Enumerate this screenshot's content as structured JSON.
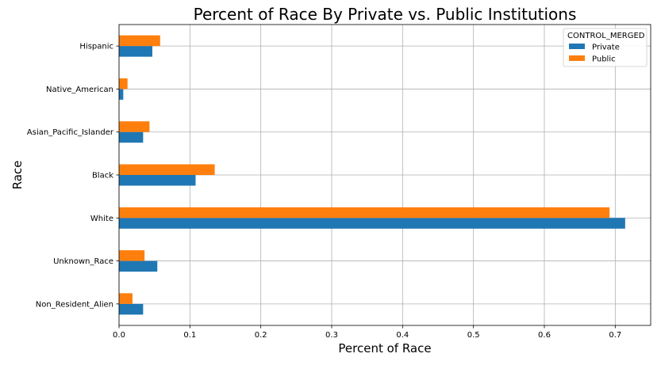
{
  "chart_data": {
    "type": "bar",
    "orientation": "horizontal",
    "title": "Percent of Race By Private vs. Public Institutions",
    "xlabel": "Percent of Race",
    "ylabel": "Race",
    "categories": [
      "Non_Resident_Alien",
      "Unknown_Race",
      "White",
      "Black",
      "Asian_Pacific_Islander",
      "Native_American",
      "Hispanic"
    ],
    "series": [
      {
        "name": "Private",
        "color": "#1f77b4",
        "values": [
          0.034,
          0.054,
          0.714,
          0.108,
          0.034,
          0.006,
          0.047
        ]
      },
      {
        "name": "Public",
        "color": "#ff7f0e",
        "values": [
          0.019,
          0.036,
          0.692,
          0.135,
          0.043,
          0.012,
          0.058
        ]
      }
    ],
    "xlim": [
      0,
      0.75
    ],
    "xticks": [
      "0.0",
      "0.1",
      "0.2",
      "0.3",
      "0.4",
      "0.5",
      "0.6",
      "0.7"
    ],
    "grid": true,
    "legend": {
      "title": "CONTROL_MERGED",
      "placement": "top-right"
    }
  }
}
